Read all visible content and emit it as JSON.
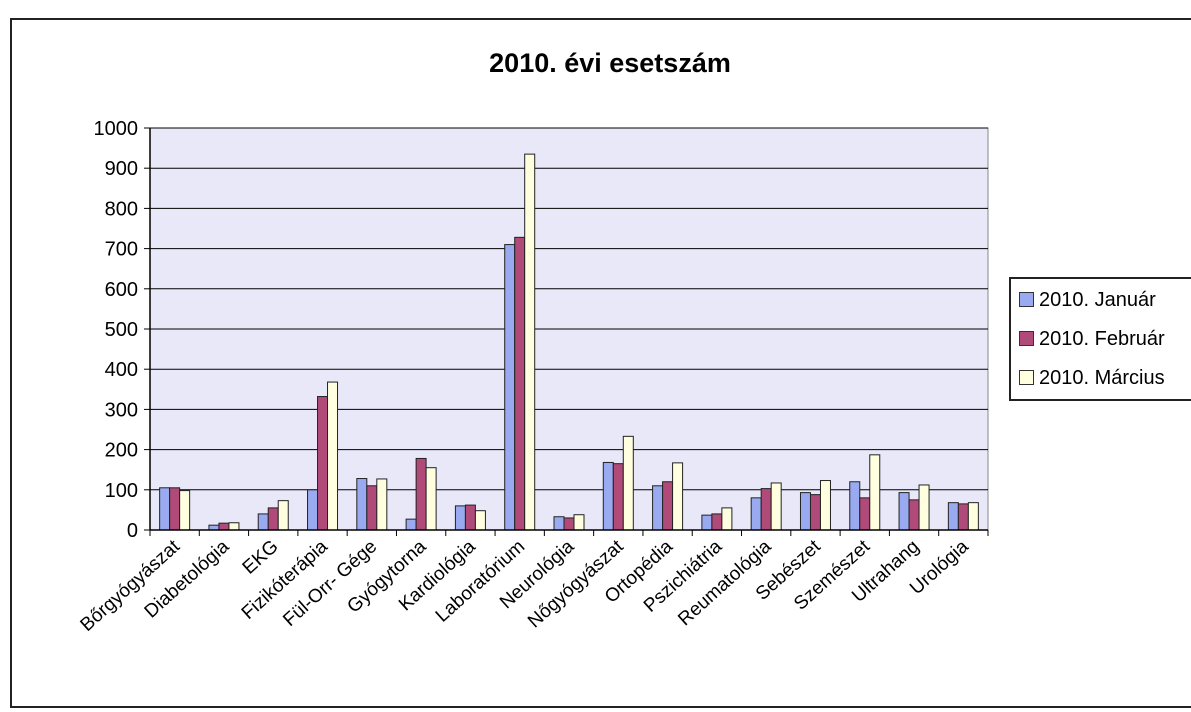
{
  "chart_data": {
    "type": "bar",
    "title": "2010. évi esetszám",
    "xlabel": "",
    "ylabel": "",
    "ylim": [
      0,
      1000
    ],
    "yticks": [
      "0",
      "100",
      "200",
      "300",
      "400",
      "500",
      "600",
      "700",
      "800",
      "900",
      "1000"
    ],
    "grid": true,
    "legend_position": "right",
    "categories": [
      "Bőrgyógyászat",
      "Diabetológia",
      "EKG",
      "Fizikóterápia",
      "Fül-Orr- Gége",
      "Gyógytorna",
      "Kardiológia",
      "Laboratórium",
      "Neurológia",
      "Nőgyógyászat",
      "Ortopédia",
      "Pszichiátria",
      "Reumatológia",
      "Sebészet",
      "Szemészet",
      "Ultrahang",
      "Urológia"
    ],
    "series": [
      {
        "name": "2010. Január",
        "color": "#9aaaf0",
        "values": [
          105,
          12,
          40,
          100,
          128,
          27,
          60,
          710,
          33,
          168,
          110,
          37,
          80,
          93,
          120,
          93,
          68
        ]
      },
      {
        "name": "2010. Február",
        "color": "#b04a78",
        "values": [
          105,
          17,
          55,
          332,
          110,
          178,
          62,
          728,
          30,
          165,
          120,
          40,
          103,
          88,
          80,
          75,
          65
        ]
      },
      {
        "name": "2010. Március",
        "color": "#ffffe0",
        "values": [
          98,
          18,
          73,
          368,
          127,
          155,
          48,
          935,
          38,
          233,
          167,
          55,
          117,
          123,
          187,
          112,
          68
        ]
      }
    ],
    "plot_background": "#e8e8f8"
  }
}
